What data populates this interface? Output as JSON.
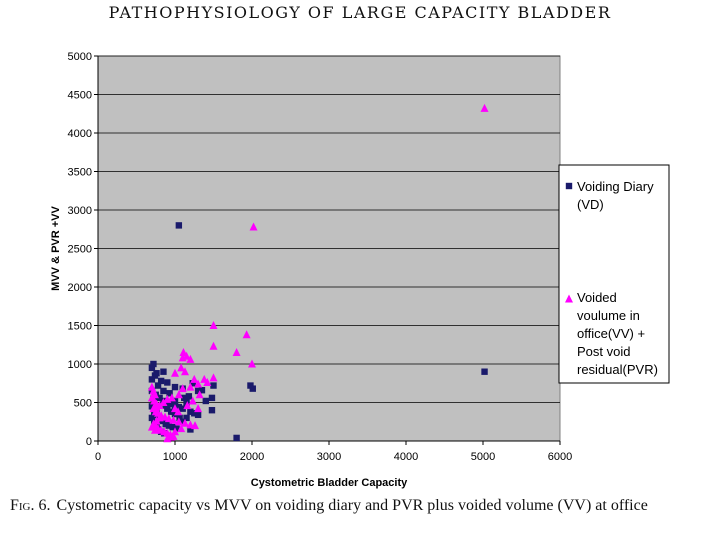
{
  "header": "PATHOPHYSIOLOGY OF LARGE CAPACITY BLADDER",
  "caption": {
    "fig_label": "Fig. 6.",
    "text": "Cystometric capacity vs MVV on voiding diary and PVR plus voided volume (VV) at office"
  },
  "colors": {
    "plot_bg": "#c0c0c0",
    "vd": "#1a1a6b",
    "vv": "#ff00ff",
    "grid": "#000000"
  },
  "chart_data": {
    "type": "scatter",
    "xlabel": "Cystometric Bladder Capacity",
    "ylabel": "MVV & PVR +VV",
    "xlim": [
      0,
      6000
    ],
    "ylim": [
      0,
      5000
    ],
    "xticks": [
      0,
      1000,
      2000,
      3000,
      4000,
      5000,
      6000
    ],
    "yticks": [
      0,
      500,
      1000,
      1500,
      2000,
      2500,
      3000,
      3500,
      4000,
      4500,
      5000
    ],
    "grid": "horizontal",
    "legend_position": "right",
    "series": [
      {
        "name": "Voiding Diary (VD)",
        "legend_lines": [
          "Voiding Diary",
          "(VD)"
        ],
        "marker": "square",
        "points": [
          [
            1050,
            2800
          ],
          [
            5020,
            900
          ],
          [
            1980,
            720
          ],
          [
            2010,
            680
          ],
          [
            1800,
            40
          ],
          [
            720,
            1000
          ],
          [
            700,
            950
          ],
          [
            760,
            880
          ],
          [
            850,
            900
          ],
          [
            740,
            850
          ],
          [
            700,
            800
          ],
          [
            820,
            780
          ],
          [
            900,
            760
          ],
          [
            780,
            720
          ],
          [
            1000,
            700
          ],
          [
            1100,
            680
          ],
          [
            1230,
            750
          ],
          [
            1300,
            650
          ],
          [
            1350,
            660
          ],
          [
            1500,
            720
          ],
          [
            1480,
            560
          ],
          [
            700,
            650
          ],
          [
            750,
            600
          ],
          [
            800,
            560
          ],
          [
            850,
            520
          ],
          [
            900,
            500
          ],
          [
            950,
            480
          ],
          [
            1000,
            460
          ],
          [
            1050,
            440
          ],
          [
            1100,
            420
          ],
          [
            1150,
            500
          ],
          [
            1200,
            380
          ],
          [
            1250,
            360
          ],
          [
            1300,
            340
          ],
          [
            1400,
            520
          ],
          [
            1480,
            400
          ],
          [
            700,
            450
          ],
          [
            730,
            380
          ],
          [
            760,
            340
          ],
          [
            800,
            300
          ],
          [
            840,
            260
          ],
          [
            880,
            220
          ],
          [
            920,
            200
          ],
          [
            970,
            180
          ],
          [
            1020,
            160
          ],
          [
            1100,
            250
          ],
          [
            1150,
            300
          ],
          [
            1200,
            150
          ],
          [
            700,
            300
          ],
          [
            730,
            250
          ],
          [
            760,
            200
          ],
          [
            780,
            150
          ],
          [
            820,
            120
          ],
          [
            860,
            100
          ],
          [
            900,
            420
          ],
          [
            950,
            380
          ],
          [
            1000,
            350
          ],
          [
            1060,
            300
          ],
          [
            720,
            550
          ],
          [
            850,
            650
          ],
          [
            930,
            620
          ],
          [
            1120,
            560
          ],
          [
            1180,
            580
          ],
          [
            760,
            420
          ],
          [
            880,
            460
          ],
          [
            1000,
            520
          ]
        ]
      },
      {
        "name": "Voided voulume in office(VV) + Post void residual(PVR)",
        "legend_lines": [
          "Voided",
          "voulume in",
          "office(VV) +",
          "Post void",
          "residual(PVR)"
        ],
        "marker": "triangle",
        "points": [
          [
            5020,
            4320
          ],
          [
            2020,
            2780
          ],
          [
            1500,
            1500
          ],
          [
            1930,
            1380
          ],
          [
            1500,
            1230
          ],
          [
            1800,
            1150
          ],
          [
            2000,
            1000
          ],
          [
            1110,
            1150
          ],
          [
            1150,
            1100
          ],
          [
            1100,
            1080
          ],
          [
            1200,
            1060
          ],
          [
            1080,
            950
          ],
          [
            1130,
            900
          ],
          [
            1000,
            880
          ],
          [
            1250,
            800
          ],
          [
            1380,
            800
          ],
          [
            1500,
            820
          ],
          [
            1420,
            760
          ],
          [
            1300,
            740
          ],
          [
            1200,
            700
          ],
          [
            1100,
            680
          ],
          [
            1050,
            600
          ],
          [
            960,
            560
          ],
          [
            900,
            540
          ],
          [
            850,
            500
          ],
          [
            800,
            460
          ],
          [
            760,
            440
          ],
          [
            720,
            420
          ],
          [
            750,
            380
          ],
          [
            780,
            360
          ],
          [
            820,
            330
          ],
          [
            870,
            310
          ],
          [
            920,
            290
          ],
          [
            980,
            270
          ],
          [
            1050,
            250
          ],
          [
            1130,
            230
          ],
          [
            1200,
            210
          ],
          [
            1260,
            200
          ],
          [
            700,
            700
          ],
          [
            720,
            650
          ],
          [
            740,
            600
          ],
          [
            700,
            560
          ],
          [
            730,
            520
          ],
          [
            760,
            480
          ],
          [
            800,
            300
          ],
          [
            760,
            260
          ],
          [
            720,
            220
          ],
          [
            750,
            190
          ],
          [
            780,
            160
          ],
          [
            820,
            140
          ],
          [
            860,
            120
          ],
          [
            900,
            100
          ],
          [
            940,
            80
          ],
          [
            980,
            60
          ],
          [
            900,
            30
          ],
          [
            950,
            50
          ],
          [
            700,
            180
          ],
          [
            740,
            140
          ],
          [
            1000,
            420
          ],
          [
            1040,
            380
          ],
          [
            1160,
            460
          ],
          [
            1230,
            520
          ],
          [
            1000,
            120
          ],
          [
            1080,
            160
          ],
          [
            1320,
            600
          ],
          [
            1300,
            420
          ]
        ]
      }
    ]
  }
}
